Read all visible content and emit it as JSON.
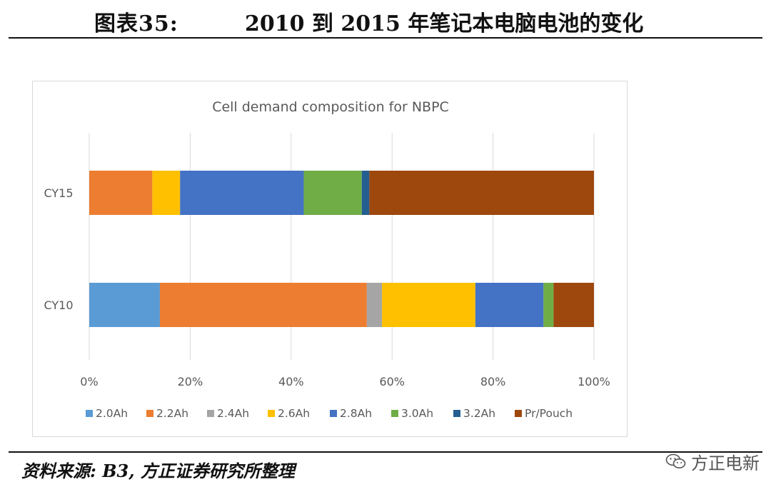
{
  "header": {
    "label": "图表35:",
    "title": "2010 到 2015 年笔记本电脑电池的变化"
  },
  "footer": {
    "source": "资料来源: B3, 方正证券研究所整理",
    "watermark": "方正电新",
    "watermark_icon": "wechat-icon"
  },
  "chart_data": {
    "type": "bar",
    "orientation": "horizontal",
    "stacked": "percent",
    "title": "Cell demand composition  for NBPC",
    "xlabel": "",
    "ylabel": "",
    "xlim": [
      0,
      100
    ],
    "x_ticks": [
      "0%",
      "20%",
      "40%",
      "60%",
      "80%",
      "100%"
    ],
    "grid": "vertical",
    "legend_position": "bottom",
    "categories": [
      "CY15",
      "CY10"
    ],
    "series": [
      {
        "name": "2.0Ah",
        "color": "#5b9bd5",
        "values": [
          0,
          14
        ]
      },
      {
        "name": "2.2Ah",
        "color": "#ed7d31",
        "values": [
          12.5,
          41
        ]
      },
      {
        "name": "2.4Ah",
        "color": "#a5a5a5",
        "values": [
          0,
          3
        ]
      },
      {
        "name": "2.6Ah",
        "color": "#ffc000",
        "values": [
          5.5,
          18.5
        ]
      },
      {
        "name": "2.8Ah",
        "color": "#4472c4",
        "values": [
          24.5,
          13.5
        ]
      },
      {
        "name": "3.0Ah",
        "color": "#70ad47",
        "values": [
          11.5,
          2
        ]
      },
      {
        "name": "3.2Ah",
        "color": "#255e91",
        "values": [
          1.5,
          0
        ]
      },
      {
        "name": "Pr/Pouch",
        "color": "#9e480e",
        "values": [
          44.5,
          8
        ]
      }
    ]
  }
}
